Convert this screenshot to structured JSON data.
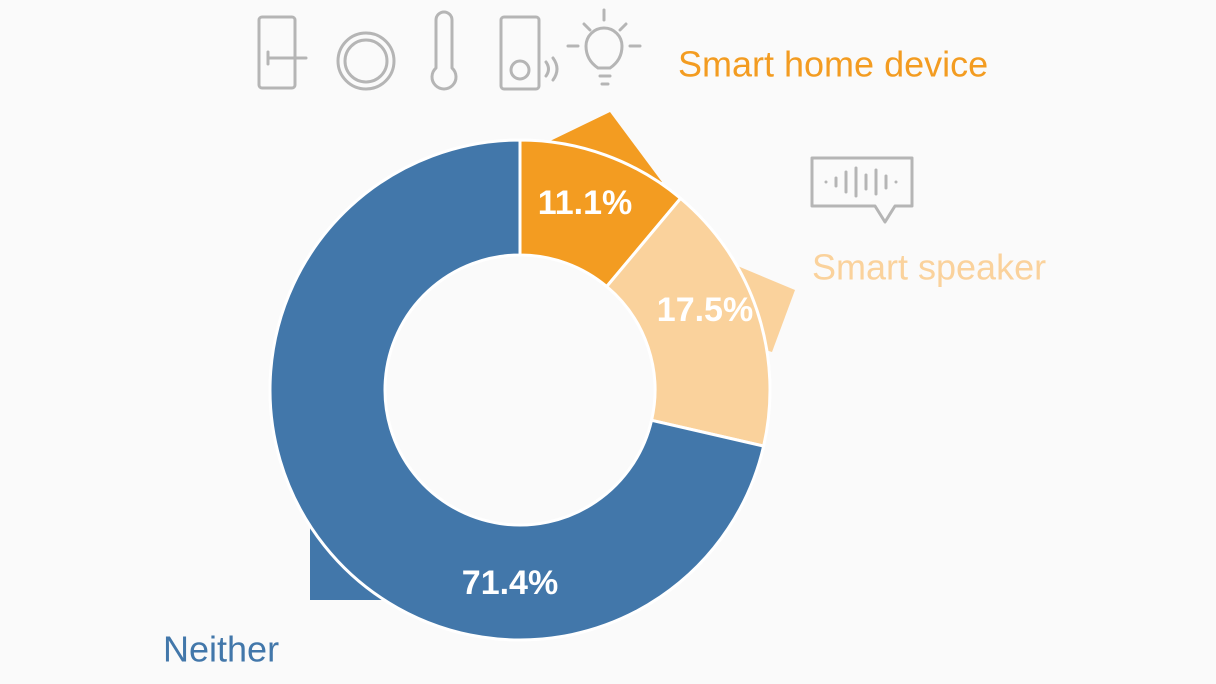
{
  "chart_data": {
    "type": "donut",
    "categories": [
      "Smart home device",
      "Smart speaker",
      "Neither"
    ],
    "values": [
      11.1,
      17.5,
      71.4
    ],
    "value_labels": [
      "11.1%",
      "17.5%",
      "71.4%"
    ],
    "colors": [
      "#f39c21",
      "#fad29c",
      "#4277aa"
    ]
  }
}
